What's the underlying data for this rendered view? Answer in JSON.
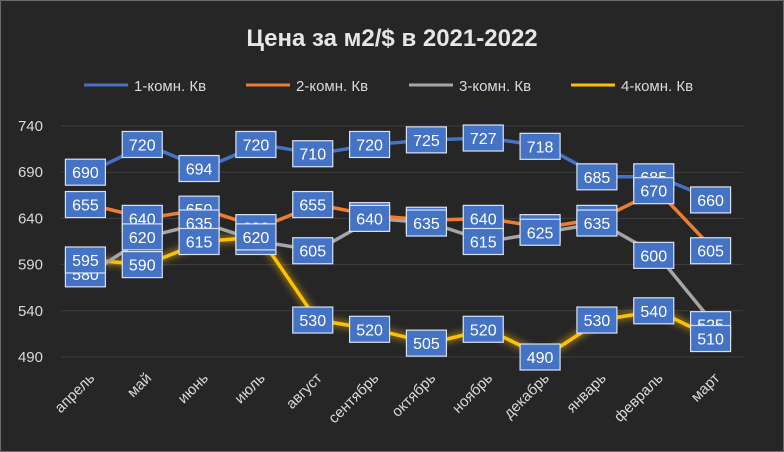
{
  "chart_data": {
    "type": "line",
    "title": "Цена за м2/$ в 2021-2022",
    "categories": [
      "апрель",
      "май",
      "июнь",
      "июль",
      "август",
      "сентябрь",
      "октябрь",
      "ноябрь",
      "декабрь",
      "январь",
      "февраль",
      "март"
    ],
    "ylim": [
      490,
      740
    ],
    "yticks": [
      490,
      540,
      590,
      640,
      690,
      740
    ],
    "grid": true,
    "legend_position": "top",
    "series": [
      {
        "name": "1-комн. Кв",
        "color": "#4472c4",
        "values": [
          690,
          720,
          694,
          720,
          710,
          720,
          725,
          727,
          718,
          685,
          685,
          660
        ]
      },
      {
        "name": "2-комн. Кв",
        "color": "#ed7d31",
        "values": [
          655,
          640,
          650,
          630,
          655,
          643,
          638,
          640,
          630,
          640,
          670,
          605
        ]
      },
      {
        "name": "3-комн. Кв",
        "color": "#a5a5a5",
        "values": [
          580,
          620,
          635,
          615,
          605,
          640,
          635,
          615,
          625,
          635,
          600,
          525
        ]
      },
      {
        "name": "4-комн. Кв",
        "color": "#ffc000",
        "values": [
          595,
          590,
          615,
          620,
          530,
          520,
          505,
          520,
          490,
          530,
          540,
          510
        ]
      }
    ]
  }
}
